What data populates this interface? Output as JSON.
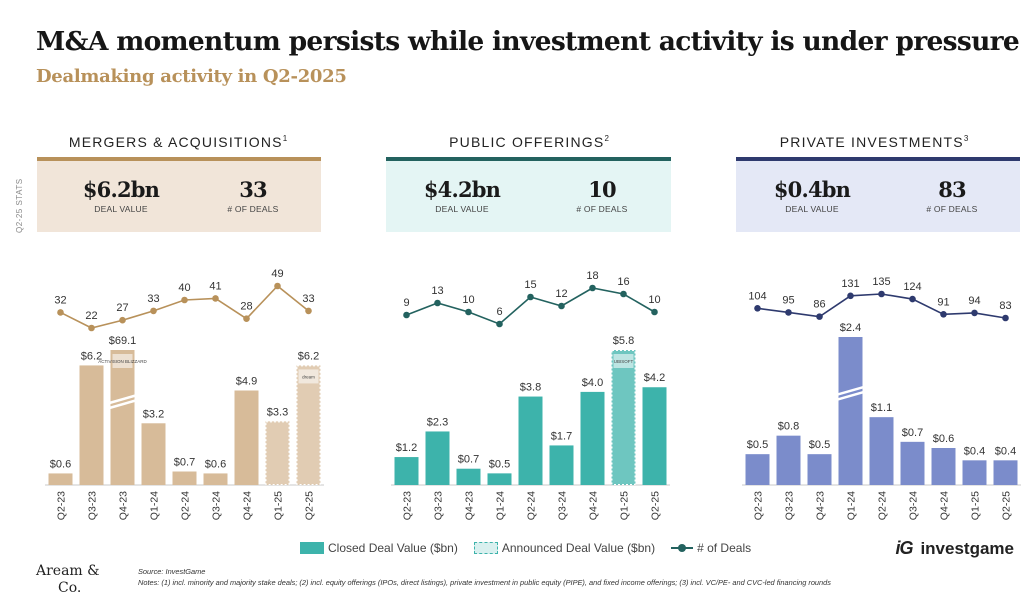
{
  "header": {
    "title": "M&A momentum persists while investment activity is under pressure",
    "subtitle": "Dealmaking activity in Q2-2025"
  },
  "side_label": "Q2-25 STATS",
  "colors": {
    "ma": "#d7bb99",
    "po": "#3db3ab",
    "pi": "#7b8ccb"
  },
  "panels": [
    {
      "title": "MERGERS & ACQUISITIONS",
      "note_ref": "1",
      "deal_value": "$6.2bn",
      "deal_value_label": "DEAL VALUE",
      "deals": "33",
      "deals_label": "# OF DEALS",
      "box_color": "#f1e5d9",
      "accent": "#b8915a"
    },
    {
      "title": "PUBLIC OFFERINGS",
      "note_ref": "2",
      "deal_value": "$4.2bn",
      "deal_value_label": "DEAL VALUE",
      "deals": "10",
      "deals_label": "# OF DEALS",
      "box_color": "#e4f5f4",
      "accent": "#23625f"
    },
    {
      "title": "PRIVATE INVESTMENTS",
      "note_ref": "3",
      "deal_value": "$0.4bn",
      "deal_value_label": "DEAL VALUE",
      "deals": "83",
      "deals_label": "# OF DEALS",
      "box_color": "#e4e8f6",
      "accent": "#2e3a6e"
    }
  ],
  "chart_data": [
    {
      "type": "bar",
      "categories": [
        "Q2-23",
        "Q3-23",
        "Q4-23",
        "Q1-24",
        "Q2-24",
        "Q3-24",
        "Q4-24",
        "Q1-25",
        "Q2-25"
      ],
      "series": [
        {
          "values": [
            0.6,
            6.2,
            69.1,
            3.2,
            0.7,
            0.6,
            4.9,
            3.3,
            6.2
          ],
          "labels": [
            "$0.6",
            "$6.2",
            "$69.1",
            "$3.2",
            "$0.7",
            "$0.6",
            "$4.9",
            "$3.3",
            "$6.2"
          ],
          "broken_axis_index": 2
        },
        {
          "values": [
            32,
            22,
            27,
            33,
            40,
            41,
            28,
            49,
            33
          ]
        }
      ],
      "announced_value_indices": [
        7,
        8
      ],
      "bar_color": "#d7bb99",
      "line_color": "#b8915a",
      "logo_labels": {
        "2": "ACTIVISION BLIZZARD",
        "8": "dream"
      }
    },
    {
      "type": "bar",
      "categories": [
        "Q2-23",
        "Q3-23",
        "Q4-23",
        "Q1-24",
        "Q2-24",
        "Q3-24",
        "Q4-24",
        "Q1-25",
        "Q2-25"
      ],
      "series": [
        {
          "values": [
            1.2,
            2.3,
            0.7,
            0.5,
            3.8,
            1.7,
            4.0,
            5.8,
            4.2
          ],
          "labels": [
            "$1.2",
            "$2.3",
            "$0.7",
            "$0.5",
            "$3.8",
            "$1.7",
            "$4.0",
            "$5.8",
            "$4.2"
          ]
        },
        {
          "values": [
            9,
            13,
            10,
            6,
            15,
            12,
            18,
            16,
            10
          ]
        }
      ],
      "announced_value_indices": [
        7
      ],
      "bar_color": "#3db3ab",
      "line_color": "#23625f",
      "logo_labels": {
        "7": "UBISOFT"
      }
    },
    {
      "type": "bar",
      "categories": [
        "Q2-23",
        "Q3-23",
        "Q4-23",
        "Q1-24",
        "Q2-24",
        "Q3-24",
        "Q4-24",
        "Q1-25",
        "Q2-25"
      ],
      "series": [
        {
          "values": [
            0.5,
            0.8,
            0.5,
            2.4,
            1.1,
            0.7,
            0.6,
            0.4,
            0.4
          ],
          "labels": [
            "$0.5",
            "$0.8",
            "$0.5",
            "$2.4",
            "$1.1",
            "$0.7",
            "$0.6",
            "$0.4",
            "$0.4"
          ],
          "broken_axis_index": 3
        },
        {
          "values": [
            104,
            95,
            86,
            131,
            135,
            124,
            91,
            94,
            83
          ]
        }
      ],
      "announced_value_indices": [],
      "bar_color": "#7b8ccb",
      "line_color": "#2e3a6e",
      "logo_labels": {}
    }
  ],
  "legend": {
    "closed": "Closed Deal Value ($bn)",
    "announced": "Announced Deal Value ($bn)",
    "deals": "# of Deals"
  },
  "footer": {
    "logo_line1": "Aream &",
    "logo_line2": "Co.",
    "brand_mark": "iG",
    "brand": "investgame",
    "source": "Source: InvestGame",
    "notes": "Notes: (1) incl. minority and majority stake deals; (2) incl. equity offerings (IPOs, direct listings), private investment in public equity (PIPE), and fixed income offerings; (3) incl. VC/PE- and CVC-led financing rounds"
  }
}
